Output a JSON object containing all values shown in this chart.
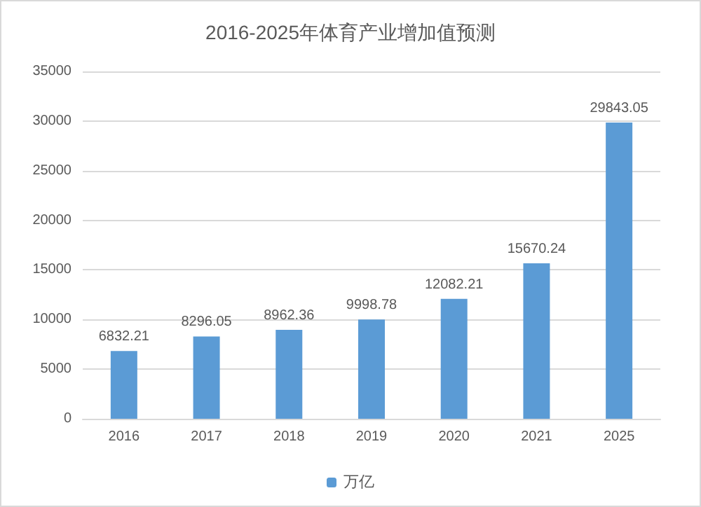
{
  "chart_data": {
    "type": "bar",
    "title": "2016-2025年体育产业增加值预测",
    "categories": [
      "2016",
      "2017",
      "2018",
      "2019",
      "2020",
      "2021",
      "2025"
    ],
    "series": [
      {
        "name": "万亿",
        "color": "#5b9bd5",
        "values": [
          6832.21,
          8296.05,
          8962.36,
          9998.78,
          12082.21,
          15670.24,
          29843.05
        ]
      }
    ],
    "ylim": [
      0,
      35000
    ],
    "yticks": [
      0,
      5000,
      10000,
      15000,
      20000,
      25000,
      30000,
      35000
    ],
    "grid": "y",
    "legend": "bottom",
    "data_labels": true
  }
}
